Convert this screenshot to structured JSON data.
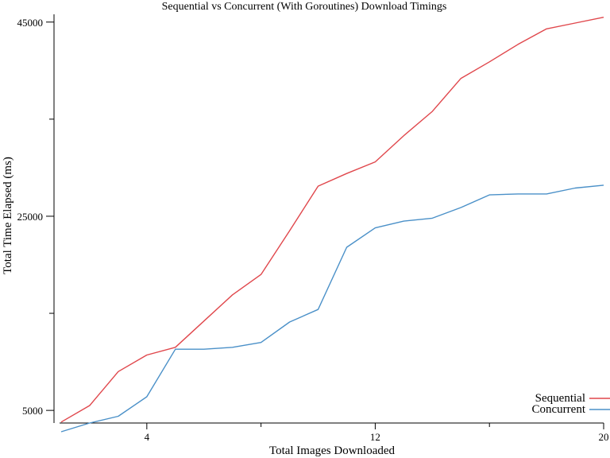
{
  "chart_data": {
    "type": "line",
    "title": "Sequential vs Concurrent (With Goroutines) Download Timings",
    "xlabel": "Total Images Downloaded",
    "ylabel": "Total Time Elapsed (ms)",
    "xlim": [
      1,
      20
    ],
    "ylim": [
      3700,
      45800
    ],
    "x_ticks_major": [
      4,
      12,
      20
    ],
    "x_ticks_minor": [
      8,
      16
    ],
    "y_ticks_major": [
      5000,
      25000,
      45000
    ],
    "y_ticks_minor": [
      15000,
      35000
    ],
    "x_tick_labels": [
      "4",
      "12",
      "20"
    ],
    "y_tick_labels": [
      "5000",
      "25000",
      "45000"
    ],
    "legend_position": "bottom-right",
    "grid": false,
    "x": [
      1,
      2,
      3,
      4,
      5,
      6,
      7,
      8,
      9,
      10,
      11,
      12,
      13,
      14,
      15,
      16,
      17,
      18,
      19,
      20
    ],
    "series": [
      {
        "name": "Sequential",
        "color": "#e0474c",
        "values": [
          3800,
          5500,
          9000,
          10700,
          11500,
          14200,
          16900,
          19000,
          23500,
          28100,
          29400,
          30600,
          33300,
          35800,
          39200,
          40900,
          42700,
          44300,
          44900,
          45500
        ]
      },
      {
        "name": "Concurrent",
        "color": "#4a90c8",
        "values": [
          2800,
          3700,
          4400,
          6400,
          11300,
          11300,
          11500,
          12000,
          14100,
          15400,
          21800,
          23800,
          24500,
          24800,
          25900,
          27200,
          27300,
          27300,
          27900,
          28200
        ]
      }
    ]
  }
}
